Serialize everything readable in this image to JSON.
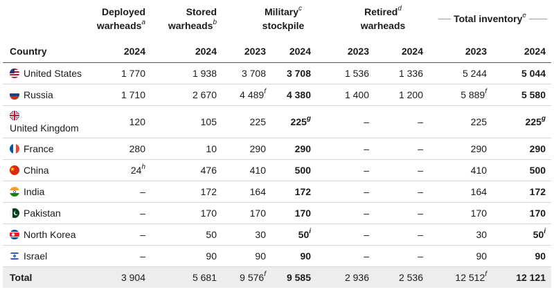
{
  "headers": {
    "deployed": "Deployed warheads",
    "deployed_note": "a",
    "stored": "Stored warheads",
    "stored_note": "b",
    "military": "Military stockpile",
    "military_note": "c",
    "retired": "Retired warheads",
    "retired_note": "d",
    "total_inventory": "Total inventory",
    "total_inventory_note": "e",
    "country": "Country",
    "years": [
      "2024",
      "2024",
      "2023",
      "2024",
      "2023",
      "2024",
      "2023",
      "2024"
    ]
  },
  "rows": [
    {
      "name": "United States",
      "flag": "us-flag-icon",
      "deployed": "1 770",
      "stored": "1 938",
      "mil_2023": "3 708",
      "mil_2024": "3 708",
      "ret_2023": "1 536",
      "ret_2024": "1 336",
      "tot_2023": "5 244",
      "tot_2024": "5 044"
    },
    {
      "name": "Russia",
      "flag": "russia-flag-icon",
      "deployed": "1 710",
      "stored": "2 670",
      "mil_2023": "4 489",
      "mil_2023_note": "f",
      "mil_2024": "4 380",
      "ret_2023": "1 400",
      "ret_2024": "1 200",
      "tot_2023": "5 889",
      "tot_2023_note": "f",
      "tot_2024": "5 580"
    },
    {
      "name": "United Kingdom",
      "flag": "uk-flag-icon",
      "deployed": "120",
      "stored": "105",
      "mil_2023": "225",
      "mil_2024": "225",
      "mil_2024_note": "g",
      "ret_2023": "–",
      "ret_2024": "–",
      "tot_2023": "225",
      "tot_2024": "225",
      "tot_2024_note": "g"
    },
    {
      "name": "France",
      "flag": "france-flag-icon",
      "deployed": "280",
      "stored": "10",
      "mil_2023": "290",
      "mil_2024": "290",
      "ret_2023": "–",
      "ret_2024": "–",
      "tot_2023": "290",
      "tot_2024": "290"
    },
    {
      "name": "China",
      "flag": "china-flag-icon",
      "deployed": "24",
      "deployed_note": "h",
      "stored": "476",
      "mil_2023": "410",
      "mil_2024": "500",
      "ret_2023": "–",
      "ret_2024": "–",
      "tot_2023": "410",
      "tot_2024": "500"
    },
    {
      "name": "India",
      "flag": "india-flag-icon",
      "deployed": "–",
      "stored": "172",
      "mil_2023": "164",
      "mil_2024": "172",
      "ret_2023": "–",
      "ret_2024": "–",
      "tot_2023": "164",
      "tot_2024": "172"
    },
    {
      "name": "Pakistan",
      "flag": "pakistan-flag-icon",
      "deployed": "–",
      "stored": "170",
      "mil_2023": "170",
      "mil_2024": "170",
      "ret_2023": "–",
      "ret_2024": "–",
      "tot_2023": "170",
      "tot_2024": "170"
    },
    {
      "name": "North Korea",
      "flag": "north-korea-flag-icon",
      "deployed": "–",
      "stored": "50",
      "mil_2023": "30",
      "mil_2024": "50",
      "mil_2024_note": "i",
      "ret_2023": "–",
      "ret_2024": "–",
      "tot_2023": "30",
      "tot_2024": "50",
      "tot_2024_note": "i"
    },
    {
      "name": "Israel",
      "flag": "israel-flag-icon",
      "deployed": "–",
      "stored": "90",
      "mil_2023": "90",
      "mil_2024": "90",
      "ret_2023": "–",
      "ret_2024": "–",
      "tot_2023": "90",
      "tot_2024": "90"
    }
  ],
  "total": {
    "name": "Total",
    "deployed": "3 904",
    "stored": "5 681",
    "mil_2023": "9 576",
    "mil_2023_note": "f",
    "mil_2024": "9 585",
    "ret_2023": "2 936",
    "ret_2024": "2 536",
    "tot_2023": "12 512",
    "tot_2023_note": "f",
    "tot_2024": "12 121"
  }
}
